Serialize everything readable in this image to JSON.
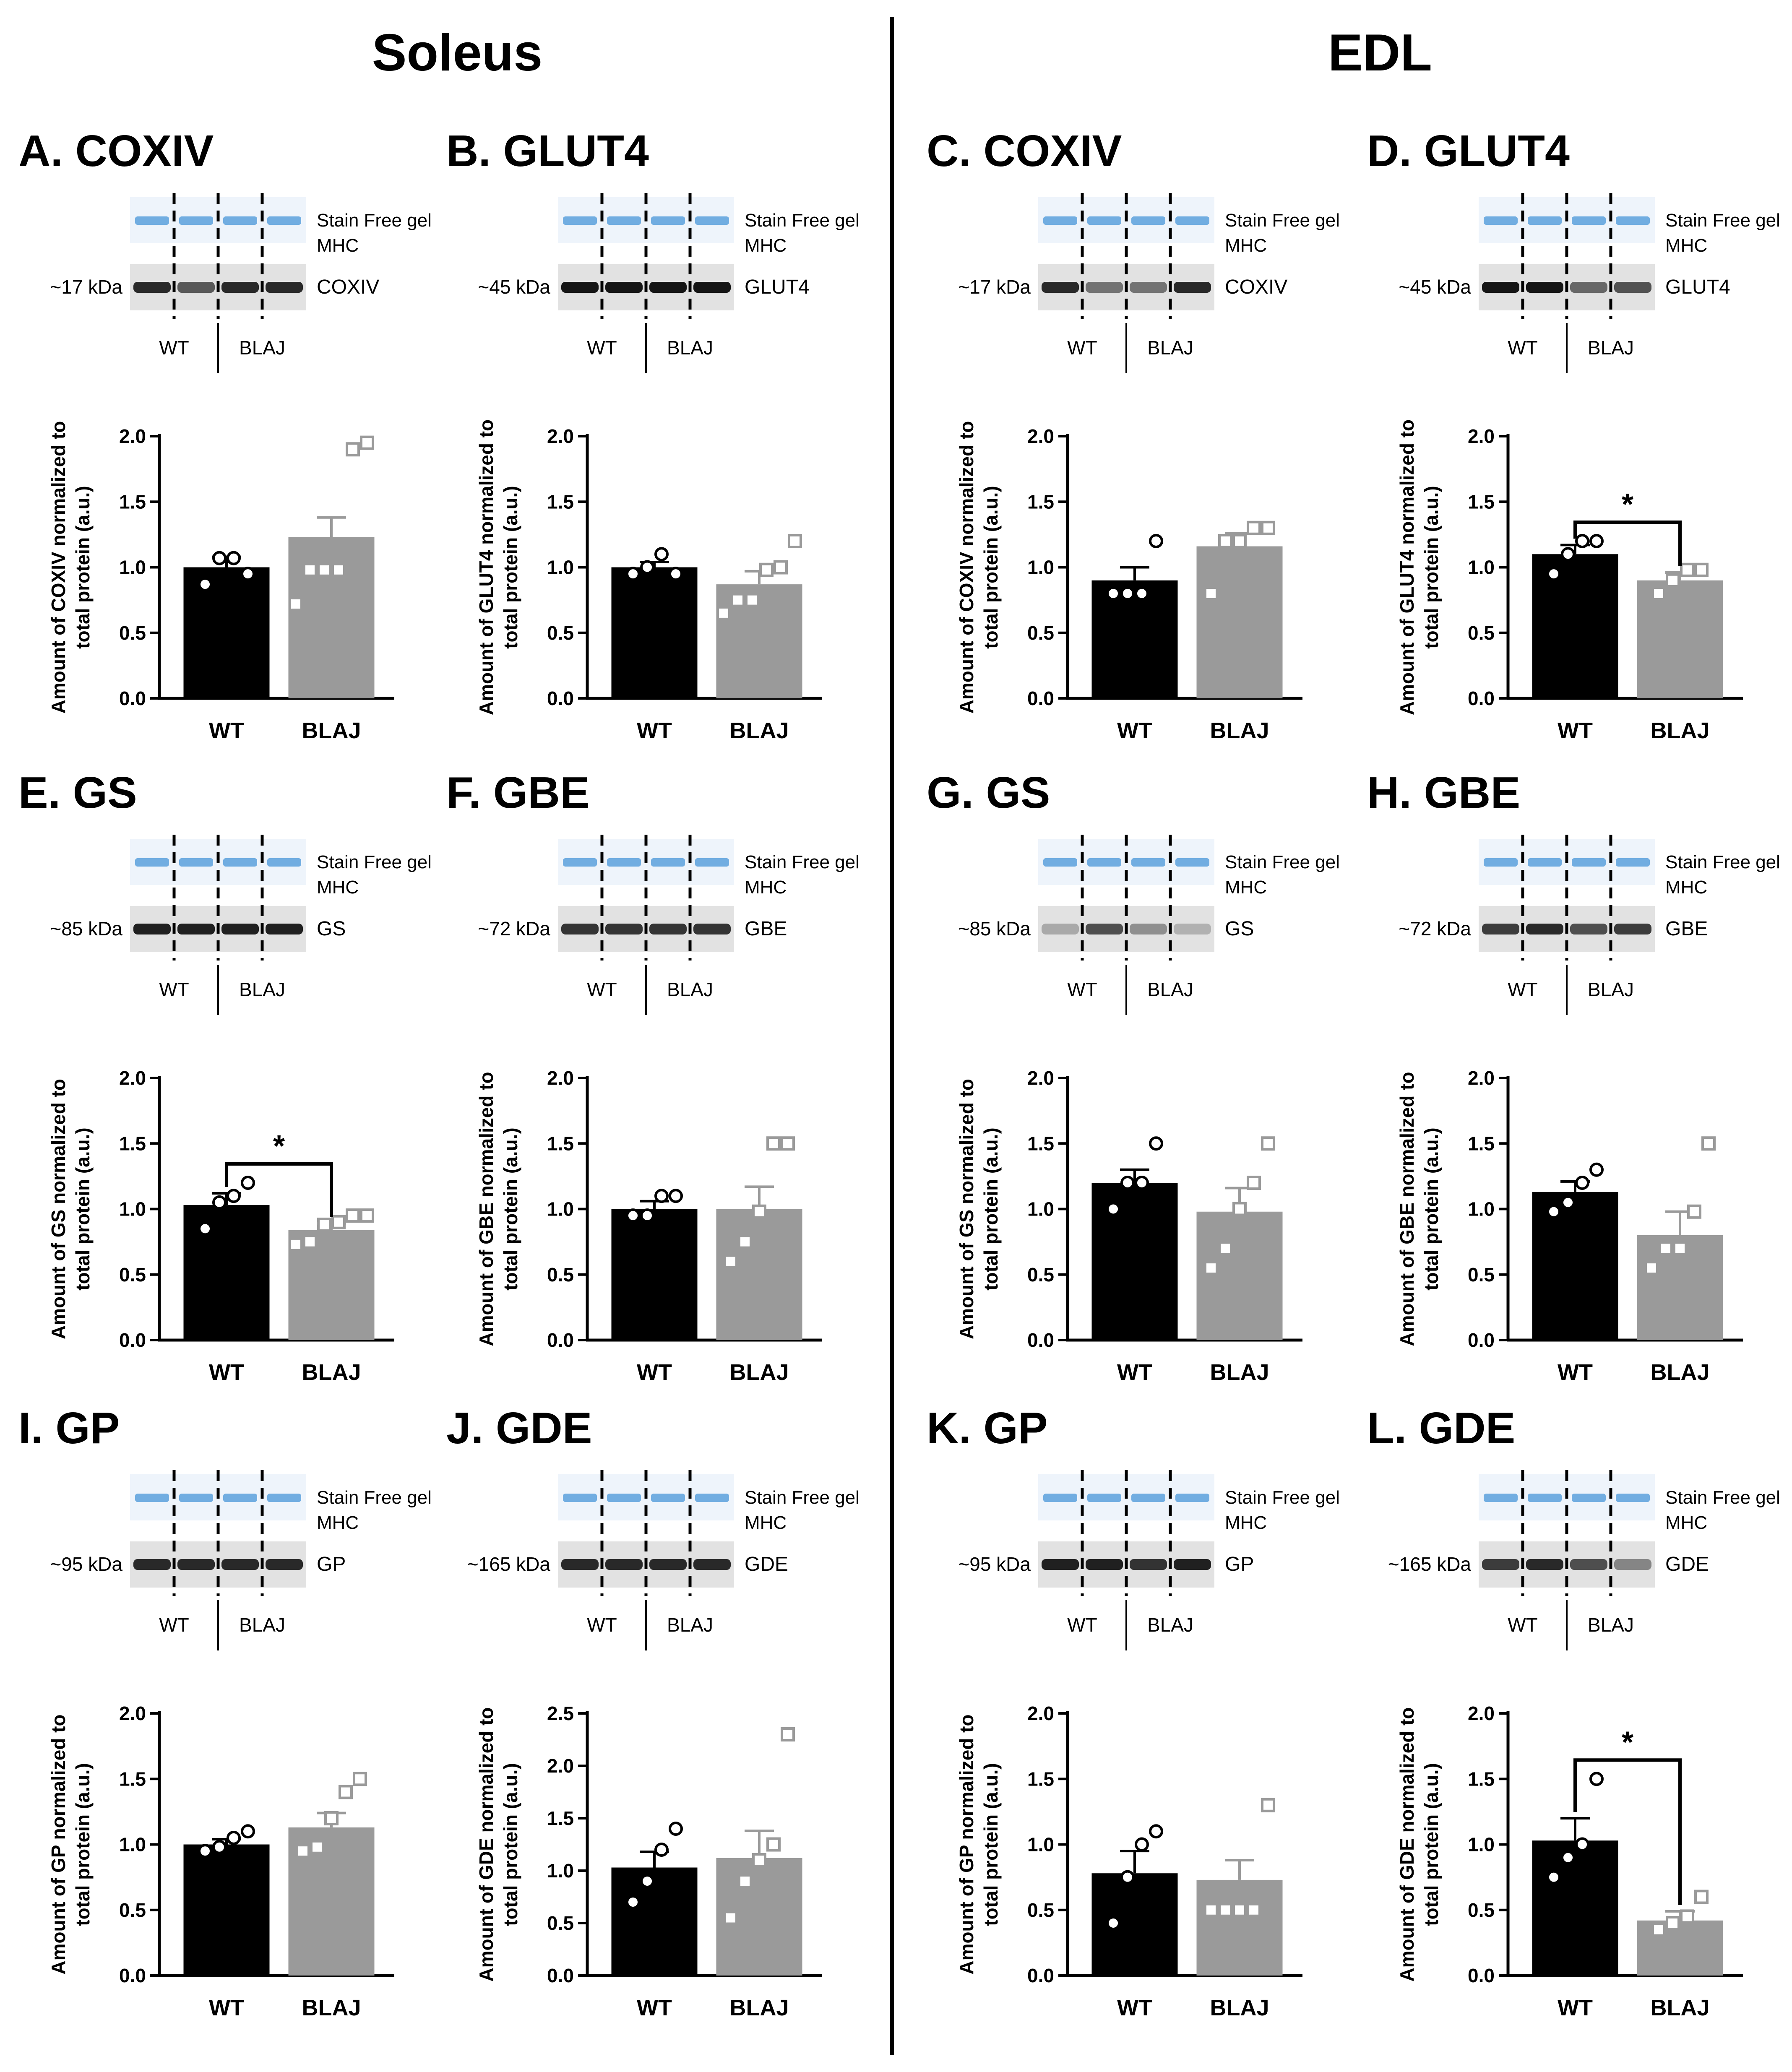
{
  "headers": {
    "left": "Soleus",
    "right": "EDL"
  },
  "blot_labels": {
    "stain_free": "Stain Free gel",
    "mhc": "MHC",
    "wt": "WT",
    "blaj": "BLAJ"
  },
  "colors": {
    "wt_bar": "#000000",
    "blaj_bar": "#9a9a9a",
    "stain_blue": "#5aa0dc",
    "blot_band": "#151515"
  },
  "chart_data": [
    {
      "panel": "A",
      "protein": "COXIV",
      "muscle": "Soleus",
      "type": "bar",
      "title": "A. COXIV",
      "kda": "~17 kDa",
      "ylabel_line1": "Amount of COXIV normalized to",
      "ylabel_line2": "total protein (a.u.)",
      "categories": [
        "WT",
        "BLAJ"
      ],
      "values": [
        1.0,
        1.23
      ],
      "sem": [
        0.08,
        0.15
      ],
      "ylim": [
        0,
        2.0
      ],
      "yticks": [
        "0.0",
        "0.5",
        "1.0",
        "1.5",
        "2.0"
      ],
      "points": [
        [
          0.87,
          1.07,
          1.07,
          0.95
        ],
        [
          0.72,
          0.98,
          0.98,
          0.98,
          1.9,
          1.95
        ]
      ],
      "significant": false,
      "bands": [
        [
          1.0,
          0.75
        ],
        [
          1.0,
          1.0
        ]
      ],
      "band_strength": [
        0.9,
        0.9
      ]
    },
    {
      "panel": "B",
      "protein": "GLUT4",
      "muscle": "Soleus",
      "type": "bar",
      "title": "B. GLUT4",
      "kda": "~45 kDa",
      "ylabel_line1": "Amount of GLUT4 normalized to",
      "ylabel_line2": "total protein (a.u.)",
      "categories": [
        "WT",
        "BLAJ"
      ],
      "values": [
        1.0,
        0.87
      ],
      "sem": [
        0.04,
        0.1
      ],
      "ylim": [
        0,
        2.0
      ],
      "yticks": [
        "0.0",
        "0.5",
        "1.0",
        "1.5",
        "2.0"
      ],
      "points": [
        [
          0.95,
          1.0,
          1.1,
          0.95
        ],
        [
          0.65,
          0.75,
          0.75,
          0.98,
          1.0,
          1.2
        ]
      ],
      "significant": false,
      "bands": [
        [
          1.0,
          1.0
        ],
        [
          1.0,
          1.0
        ]
      ],
      "band_strength": [
        1.0,
        1.0
      ]
    },
    {
      "panel": "C",
      "protein": "COXIV",
      "muscle": "EDL",
      "type": "bar",
      "title": "C. COXIV",
      "kda": "~17 kDa",
      "ylabel_line1": "Amount of COXIV normalized to",
      "ylabel_line2": "total protein (a.u.)",
      "categories": [
        "WT",
        "BLAJ"
      ],
      "values": [
        0.9,
        1.16
      ],
      "sem": [
        0.1,
        0.1
      ],
      "ylim": [
        0,
        2.0
      ],
      "yticks": [
        "0.0",
        "0.5",
        "1.0",
        "1.5",
        "2.0"
      ],
      "points": [
        [
          0.8,
          0.8,
          0.8,
          1.2
        ],
        [
          0.8,
          1.2,
          1.2,
          1.3,
          1.3
        ]
      ],
      "significant": false,
      "bands": [
        [
          1.0,
          0.6
        ],
        [
          0.6,
          1.0
        ]
      ],
      "band_strength": [
        0.9,
        0.9
      ]
    },
    {
      "panel": "D",
      "protein": "GLUT4",
      "muscle": "EDL",
      "type": "bar",
      "title": "D. GLUT4",
      "kda": "~45 kDa",
      "ylabel_line1": "Amount of GLUT4 normalized to",
      "ylabel_line2": "total protein (a.u.)",
      "categories": [
        "WT",
        "BLAJ"
      ],
      "values": [
        1.1,
        0.9
      ],
      "sem": [
        0.07,
        0.06
      ],
      "ylim": [
        0,
        2.0
      ],
      "yticks": [
        "0.0",
        "0.5",
        "1.0",
        "1.5",
        "2.0"
      ],
      "points": [
        [
          0.95,
          1.1,
          1.2,
          1.2
        ],
        [
          0.8,
          0.9,
          0.98,
          0.98
        ]
      ],
      "significant": true,
      "sig_label": "*",
      "bands": [
        [
          1.0,
          1.0
        ],
        [
          0.6,
          0.7
        ]
      ],
      "band_strength": [
        1.0,
        1.0
      ]
    },
    {
      "panel": "E",
      "protein": "GS",
      "muscle": "Soleus",
      "type": "bar",
      "title": "E. GS",
      "kda": "~85 kDa",
      "ylabel_line1": "Amount of GS normalized to",
      "ylabel_line2": "total protein (a.u.)",
      "categories": [
        "WT",
        "BLAJ"
      ],
      "values": [
        1.03,
        0.84
      ],
      "sem": [
        0.09,
        0.05
      ],
      "ylim": [
        0,
        2.0
      ],
      "yticks": [
        "0.0",
        "0.5",
        "1.0",
        "1.5",
        "2.0"
      ],
      "points": [
        [
          0.85,
          1.05,
          1.1,
          1.2
        ],
        [
          0.73,
          0.75,
          0.88,
          0.9,
          0.95,
          0.95
        ]
      ],
      "significant": true,
      "sig_label": "*",
      "bands": [
        [
          1.0,
          1.0
        ],
        [
          1.0,
          1.0
        ]
      ],
      "band_strength": [
        0.95,
        0.95
      ]
    },
    {
      "panel": "F",
      "protein": "GBE",
      "muscle": "Soleus",
      "type": "bar",
      "title": "F. GBE",
      "kda": "~72 kDa",
      "ylabel_line1": "Amount of GBE normalized to",
      "ylabel_line2": "total protein (a.u.)",
      "categories": [
        "WT",
        "BLAJ"
      ],
      "values": [
        1.0,
        1.0
      ],
      "sem": [
        0.06,
        0.17
      ],
      "ylim": [
        0,
        2.0
      ],
      "yticks": [
        "0.0",
        "0.5",
        "1.0",
        "1.5",
        "2.0"
      ],
      "points": [
        [
          0.95,
          0.95,
          1.1,
          1.1
        ],
        [
          0.6,
          0.75,
          0.98,
          1.5,
          1.5
        ]
      ],
      "significant": false,
      "bands": [
        [
          1.0,
          1.0
        ],
        [
          1.0,
          1.0
        ]
      ],
      "band_strength": [
        0.85,
        0.85
      ]
    },
    {
      "panel": "G",
      "protein": "GS",
      "muscle": "EDL",
      "type": "bar",
      "title": "G. GS",
      "kda": "~85 kDa",
      "ylabel_line1": "Amount of GS normalized to",
      "ylabel_line2": "total protein (a.u.)",
      "categories": [
        "WT",
        "BLAJ"
      ],
      "values": [
        1.2,
        0.98
      ],
      "sem": [
        0.1,
        0.18
      ],
      "ylim": [
        0,
        2.0
      ],
      "yticks": [
        "0.0",
        "0.5",
        "1.0",
        "1.5",
        "2.0"
      ],
      "points": [
        [
          1.0,
          1.2,
          1.2,
          1.5
        ],
        [
          0.55,
          0.7,
          1.0,
          1.2,
          1.5
        ]
      ],
      "significant": false,
      "bands": [
        [
          0.35,
          0.9
        ],
        [
          0.5,
          0.3
        ]
      ],
      "band_strength": [
        0.8,
        0.8
      ]
    },
    {
      "panel": "H",
      "protein": "GBE",
      "muscle": "EDL",
      "type": "bar",
      "title": "H. GBE",
      "kda": "~72 kDa",
      "ylabel_line1": "Amount of GBE normalized to",
      "ylabel_line2": "total protein (a.u.)",
      "categories": [
        "WT",
        "BLAJ"
      ],
      "values": [
        1.13,
        0.8
      ],
      "sem": [
        0.08,
        0.18
      ],
      "ylim": [
        0,
        2.0
      ],
      "yticks": [
        "0.0",
        "0.5",
        "1.0",
        "1.5",
        "2.0"
      ],
      "points": [
        [
          0.98,
          1.05,
          1.2,
          1.3
        ],
        [
          0.55,
          0.7,
          0.7,
          0.98,
          1.5
        ]
      ],
      "significant": false,
      "bands": [
        [
          0.9,
          1.0
        ],
        [
          0.8,
          0.9
        ]
      ],
      "band_strength": [
        0.9,
        0.9
      ]
    },
    {
      "panel": "I",
      "protein": "GP",
      "muscle": "Soleus",
      "type": "bar",
      "title": "I. GP",
      "kda": "~95 kDa",
      "ylabel_line1": "Amount of GP normalized to",
      "ylabel_line2": "total protein (a.u.)",
      "categories": [
        "WT",
        "BLAJ"
      ],
      "values": [
        1.0,
        1.13
      ],
      "sem": [
        0.04,
        0.11
      ],
      "ylim": [
        0,
        2.0
      ],
      "yticks": [
        "0.0",
        "0.5",
        "1.0",
        "1.5",
        "2.0"
      ],
      "points": [
        [
          0.95,
          0.98,
          1.05,
          1.1
        ],
        [
          0.95,
          0.98,
          1.2,
          1.4,
          1.5
        ]
      ],
      "significant": false,
      "bands": [
        [
          1.0,
          1.0
        ],
        [
          1.0,
          1.0
        ]
      ],
      "band_strength": [
        0.9,
        0.9
      ]
    },
    {
      "panel": "J",
      "protein": "GDE",
      "muscle": "Soleus",
      "type": "bar",
      "title": "J. GDE",
      "kda": "~165 kDa",
      "ylabel_line1": "Amount of GDE normalized to",
      "ylabel_line2": "total protein (a.u.)",
      "categories": [
        "WT",
        "BLAJ"
      ],
      "values": [
        1.03,
        1.12
      ],
      "sem": [
        0.15,
        0.26
      ],
      "ylim": [
        0,
        2.5
      ],
      "yticks": [
        "0.0",
        "0.5",
        "1.0",
        "1.5",
        "2.0",
        "2.5"
      ],
      "points": [
        [
          0.7,
          0.9,
          1.2,
          1.4
        ],
        [
          0.55,
          0.9,
          1.1,
          1.25,
          2.3
        ]
      ],
      "significant": false,
      "bands": [
        [
          1.0,
          1.0
        ],
        [
          1.0,
          1.0
        ]
      ],
      "band_strength": [
        0.9,
        0.9
      ]
    },
    {
      "panel": "K",
      "protein": "GP",
      "muscle": "EDL",
      "type": "bar",
      "title": "K. GP",
      "kda": "~95 kDa",
      "ylabel_line1": "Amount of GP normalized to",
      "ylabel_line2": "total protein (a.u.)",
      "categories": [
        "WT",
        "BLAJ"
      ],
      "values": [
        0.78,
        0.73
      ],
      "sem": [
        0.17,
        0.15
      ],
      "ylim": [
        0,
        2.0
      ],
      "yticks": [
        "0.0",
        "0.5",
        "1.0",
        "1.5",
        "2.0"
      ],
      "points": [
        [
          0.4,
          0.75,
          1.0,
          1.1
        ],
        [
          0.5,
          0.5,
          0.5,
          0.5,
          1.3
        ]
      ],
      "significant": false,
      "bands": [
        [
          1.0,
          1.0
        ],
        [
          0.9,
          1.0
        ]
      ],
      "band_strength": [
        0.95,
        0.95
      ]
    },
    {
      "panel": "L",
      "protein": "GDE",
      "muscle": "EDL",
      "type": "bar",
      "title": "L. GDE",
      "kda": "~165 kDa",
      "ylabel_line1": "Amount of GDE normalized to",
      "ylabel_line2": "total protein (a.u.)",
      "categories": [
        "WT",
        "BLAJ"
      ],
      "values": [
        1.03,
        0.42
      ],
      "sem": [
        0.17,
        0.07
      ],
      "ylim": [
        0,
        2.0
      ],
      "yticks": [
        "0.0",
        "0.5",
        "1.0",
        "1.5",
        "2.0"
      ],
      "points": [
        [
          0.75,
          0.9,
          1.0,
          1.5
        ],
        [
          0.35,
          0.4,
          0.45,
          0.6
        ]
      ],
      "significant": true,
      "sig_label": "*",
      "bands": [
        [
          0.9,
          1.0
        ],
        [
          0.8,
          0.5
        ]
      ],
      "band_strength": [
        0.9,
        0.9
      ]
    }
  ]
}
